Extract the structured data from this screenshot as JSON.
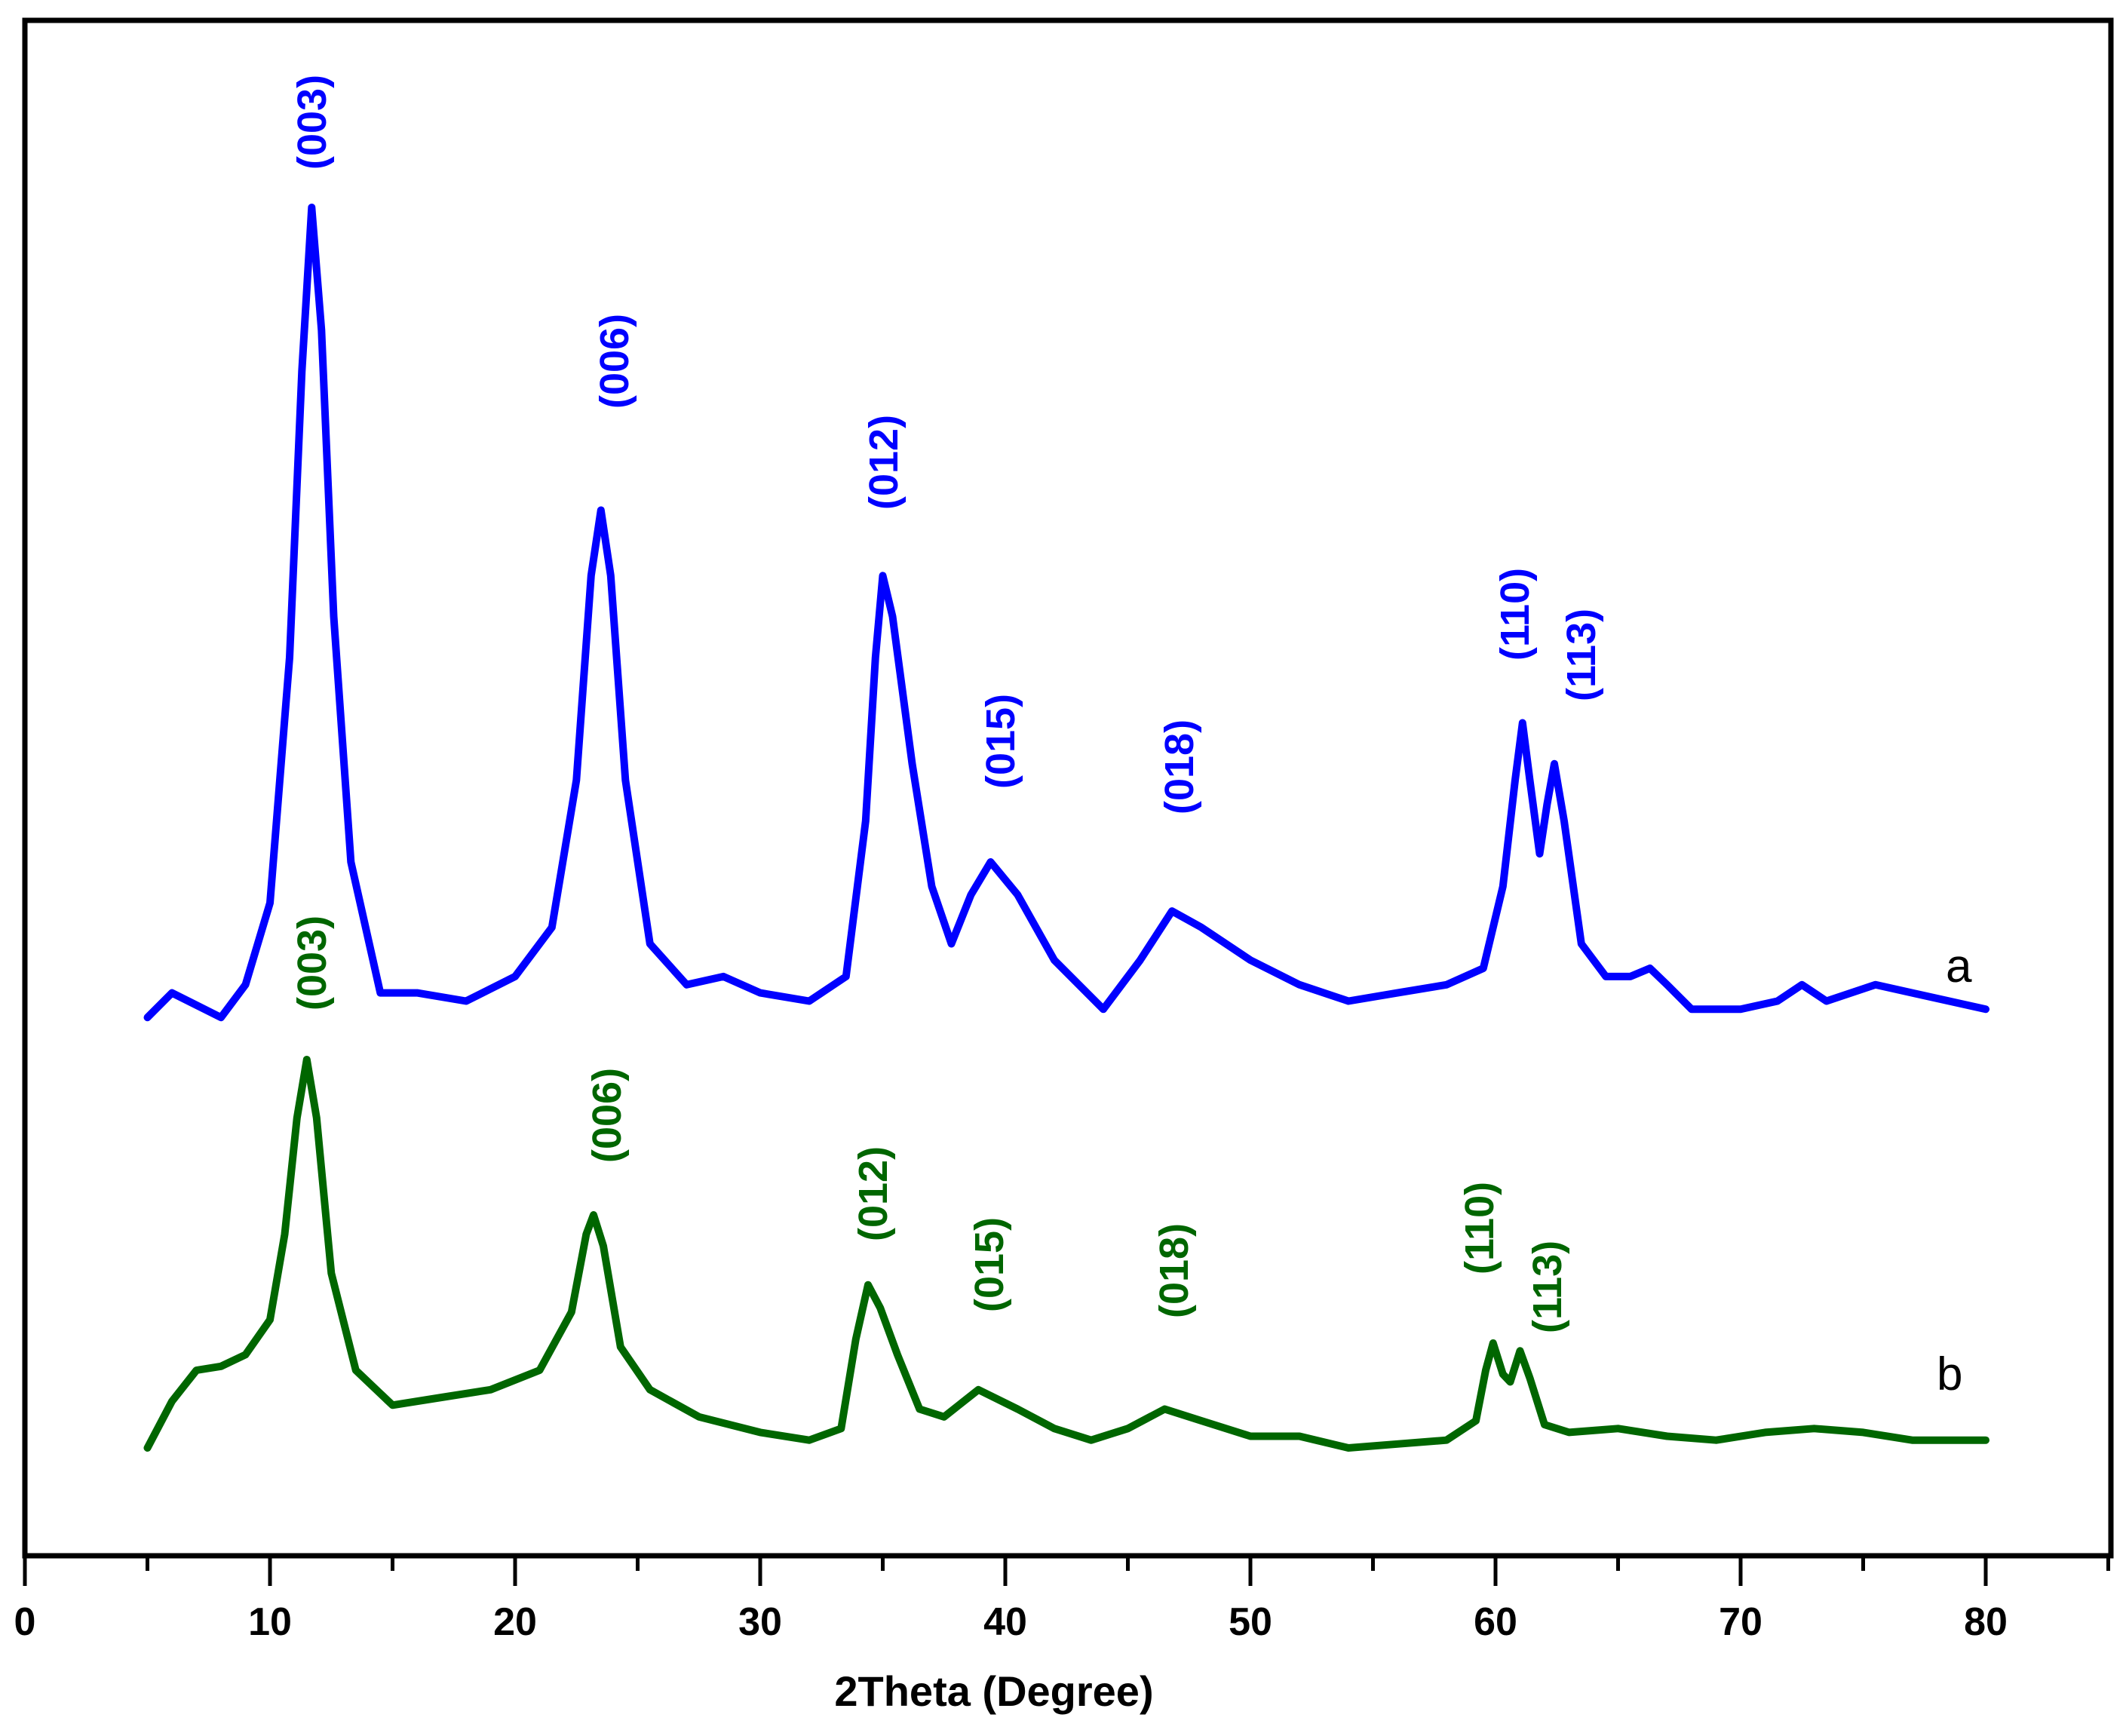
{
  "chart_data": {
    "type": "line",
    "title": "",
    "xlabel": "2Theta (Degree)",
    "ylabel": "",
    "xlim": [
      0,
      85
    ],
    "x_ticks": [
      0,
      10,
      20,
      30,
      40,
      50,
      60,
      70,
      80
    ],
    "x_minor_ticks": [
      5,
      15,
      25,
      35,
      45,
      55,
      65,
      75,
      85
    ],
    "y_ticks": [],
    "grid": false,
    "legend": "none (series labelled inline as 'a' and 'b')",
    "series": [
      {
        "name": "a",
        "color": "#0000ff",
        "peaks": [
          {
            "hkl": "(003)",
            "two_theta": 11.7,
            "rel_intensity": 1.0
          },
          {
            "hkl": "(006)",
            "two_theta": 23.5,
            "rel_intensity": 0.63
          },
          {
            "hkl": "(012)",
            "two_theta": 35.0,
            "rel_intensity": 0.55
          },
          {
            "hkl": "(015)",
            "two_theta": 39.4,
            "rel_intensity": 0.2
          },
          {
            "hkl": "(018)",
            "two_theta": 46.8,
            "rel_intensity": 0.14
          },
          {
            "hkl": "(110)",
            "two_theta": 61.1,
            "rel_intensity": 0.37
          },
          {
            "hkl": "(113)",
            "two_theta": 62.4,
            "rel_intensity": 0.32
          }
        ],
        "x": [
          5,
          6,
          8,
          9,
          10,
          10.8,
          11.3,
          11.7,
          12.1,
          12.6,
          13.3,
          14.5,
          16,
          18,
          20,
          21.5,
          22.5,
          23.1,
          23.5,
          23.9,
          24.5,
          25.5,
          27,
          28.5,
          30,
          32,
          33.5,
          34.3,
          34.7,
          35.0,
          35.4,
          36.2,
          37,
          37.8,
          38.6,
          39.4,
          40.5,
          42,
          44,
          45.5,
          46.8,
          48,
          50,
          52,
          54,
          56,
          58,
          59.5,
          60.3,
          60.8,
          61.1,
          61.4,
          61.8,
          62.1,
          62.4,
          62.8,
          63.5,
          64.5,
          65.5,
          66.3,
          67,
          68,
          70,
          71.5,
          72.5,
          73.5,
          75.5,
          77,
          80
        ],
        "y": [
          0.01,
          0.04,
          0.01,
          0.05,
          0.15,
          0.45,
          0.8,
          1.0,
          0.85,
          0.5,
          0.2,
          0.04,
          0.04,
          0.03,
          0.06,
          0.12,
          0.3,
          0.55,
          0.63,
          0.55,
          0.3,
          0.1,
          0.05,
          0.06,
          0.04,
          0.03,
          0.06,
          0.25,
          0.45,
          0.55,
          0.5,
          0.32,
          0.17,
          0.1,
          0.16,
          0.2,
          0.16,
          0.08,
          0.02,
          0.08,
          0.14,
          0.12,
          0.08,
          0.05,
          0.03,
          0.04,
          0.05,
          0.07,
          0.17,
          0.3,
          0.37,
          0.3,
          0.21,
          0.27,
          0.32,
          0.25,
          0.1,
          0.06,
          0.06,
          0.07,
          0.05,
          0.02,
          0.02,
          0.03,
          0.05,
          0.03,
          0.05,
          0.04,
          0.02
        ]
      },
      {
        "name": "b",
        "color": "#006600",
        "peaks": [
          {
            "hkl": "(003)",
            "two_theta": 11.5,
            "rel_intensity": 1.0
          },
          {
            "hkl": "(006)",
            "two_theta": 23.2,
            "rel_intensity": 0.6
          },
          {
            "hkl": "(012)",
            "two_theta": 34.4,
            "rel_intensity": 0.42
          },
          {
            "hkl": "(015)",
            "two_theta": 38.9,
            "rel_intensity": 0.15
          },
          {
            "hkl": "(018)",
            "two_theta": 46.5,
            "rel_intensity": 0.1
          },
          {
            "hkl": "(110)",
            "two_theta": 59.9,
            "rel_intensity": 0.27
          },
          {
            "hkl": "(113)",
            "two_theta": 61.0,
            "rel_intensity": 0.25
          }
        ],
        "x": [
          5,
          6,
          7,
          8,
          9,
          10,
          10.6,
          11.1,
          11.5,
          11.9,
          12.5,
          13.5,
          15,
          17,
          19,
          21,
          22.3,
          22.9,
          23.2,
          23.6,
          24.3,
          25.5,
          27.5,
          30,
          32,
          33.3,
          33.9,
          34.4,
          34.9,
          35.6,
          36.5,
          37.5,
          38.9,
          40.5,
          42,
          43.5,
          45,
          46.5,
          48,
          50,
          52,
          54,
          56,
          58,
          59.2,
          59.6,
          59.9,
          60.3,
          60.6,
          61.0,
          61.4,
          62,
          63,
          65,
          67,
          69,
          71,
          73,
          75,
          77,
          80
        ],
        "y": [
          0.0,
          0.12,
          0.2,
          0.21,
          0.24,
          0.33,
          0.55,
          0.85,
          1.0,
          0.85,
          0.45,
          0.2,
          0.11,
          0.13,
          0.15,
          0.2,
          0.35,
          0.55,
          0.6,
          0.52,
          0.26,
          0.15,
          0.08,
          0.04,
          0.02,
          0.05,
          0.28,
          0.42,
          0.36,
          0.24,
          0.1,
          0.08,
          0.15,
          0.1,
          0.05,
          0.02,
          0.05,
          0.1,
          0.07,
          0.03,
          0.03,
          0.0,
          0.01,
          0.02,
          0.07,
          0.2,
          0.27,
          0.19,
          0.17,
          0.25,
          0.18,
          0.06,
          0.04,
          0.05,
          0.03,
          0.02,
          0.04,
          0.05,
          0.04,
          0.02,
          0.02
        ]
      }
    ],
    "annotations": [
      {
        "text": "a",
        "series": "a",
        "position": "right of trace a"
      },
      {
        "text": "b",
        "series": "b",
        "position": "right of trace b"
      }
    ]
  },
  "axes": {
    "x_title": "2Theta (Degree)",
    "x_tick_labels": [
      "0",
      "10",
      "20",
      "30",
      "40",
      "50",
      "60",
      "70",
      "80"
    ]
  },
  "labels": {
    "series_a": "a",
    "series_b": "b",
    "a_peaks": [
      "(003)",
      "(006)",
      "(012)",
      "(015)",
      "(018)",
      "(110)",
      "(113)"
    ],
    "b_peaks": [
      "(003)",
      "(006)",
      "(012)",
      "(015)",
      "(018)",
      "(110)",
      "(113)"
    ]
  }
}
